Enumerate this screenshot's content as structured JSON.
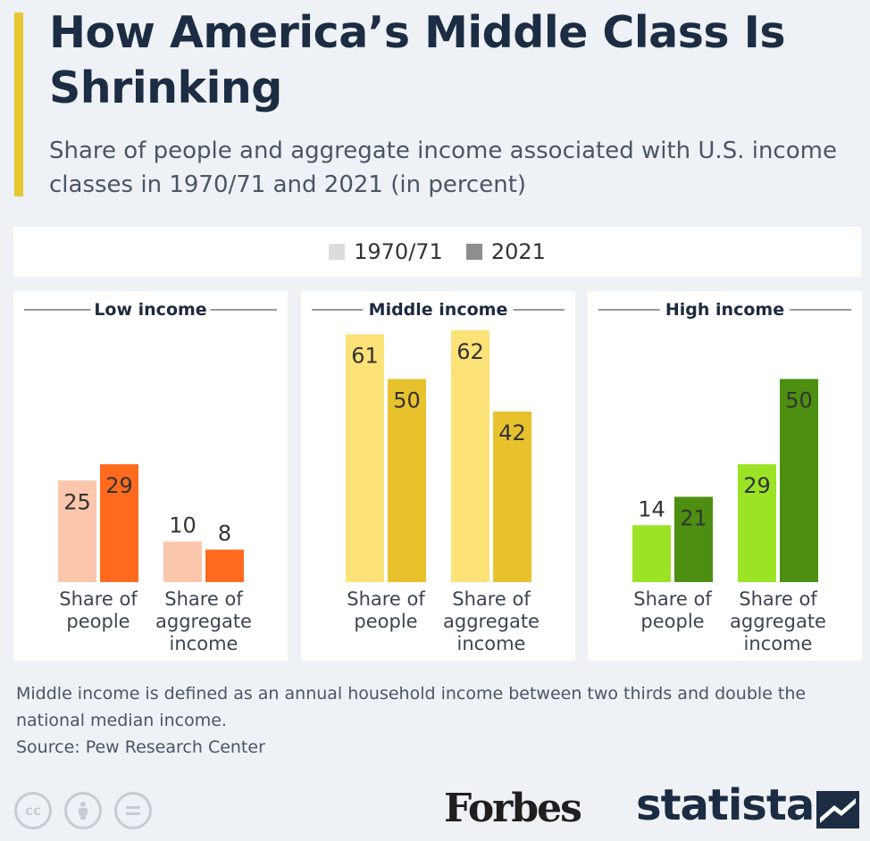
{
  "title": "How America’s Middle Class Is Shrinking",
  "subtitle": "Share of people and aggregate income associated with U.S. income classes in 1970/71 and 2021 (in percent)",
  "legend": {
    "series_a": "1970/71",
    "series_b": "2021"
  },
  "chart_data": {
    "type": "bar",
    "ylim": [
      0,
      65
    ],
    "series_names": [
      "1970/71",
      "2021"
    ],
    "panels": [
      {
        "title": "Low income",
        "colors": [
          "#fbc6ab",
          "#ff6a1f"
        ],
        "categories": [
          [
            "Share of",
            "people"
          ],
          [
            "Share of",
            "aggregate",
            "income"
          ]
        ],
        "series": [
          {
            "name": "1970/71",
            "values": [
              25,
              10
            ]
          },
          {
            "name": "2021",
            "values": [
              29,
              8
            ]
          }
        ]
      },
      {
        "title": "Middle income",
        "colors": [
          "#fce277",
          "#e7c22d"
        ],
        "categories": [
          [
            "Share of",
            "people"
          ],
          [
            "Share of",
            "aggregate",
            "income"
          ]
        ],
        "series": [
          {
            "name": "1970/71",
            "values": [
              61,
              62
            ]
          },
          {
            "name": "2021",
            "values": [
              50,
              42
            ]
          }
        ]
      },
      {
        "title": "High income",
        "colors": [
          "#9be325",
          "#4d8f10"
        ],
        "categories": [
          [
            "Share of",
            "people"
          ],
          [
            "Share of",
            "aggregate",
            "income"
          ]
        ],
        "series": [
          {
            "name": "1970/71",
            "values": [
              14,
              29
            ]
          },
          {
            "name": "2021",
            "values": [
              21,
              50
            ]
          }
        ]
      }
    ]
  },
  "note": "Middle income is defined as an annual household income between two thirds and double the national median income.",
  "source": "Source: Pew Research Center",
  "footer": {
    "cc_icons": [
      "cc-icon",
      "attribution-icon",
      "no-derivatives-icon"
    ],
    "brand_forbes": "Forbes",
    "brand_statista": "statista"
  }
}
